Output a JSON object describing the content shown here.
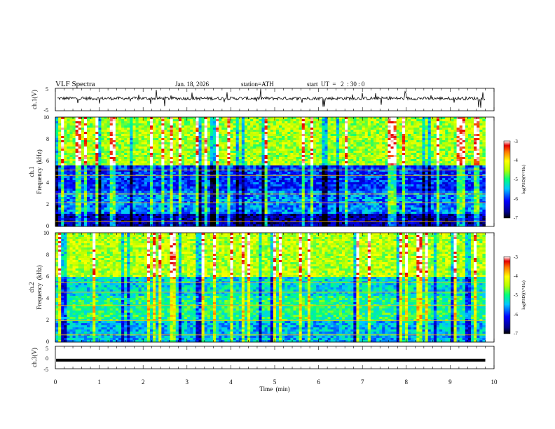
{
  "header": {
    "title": "VLF  Spectra",
    "date": "Jan. 18, 2026",
    "station": "station=ATH",
    "start_ut": "start  UT  =   2  : 30 : 0"
  },
  "chart_data": [
    {
      "id": "ch1-voltage",
      "type": "line",
      "ylabel": "ch.1(V)",
      "ylim": [
        -5,
        5
      ],
      "yticks": [
        "5",
        "-5"
      ],
      "xlim": [
        0,
        9.8
      ],
      "baseline": 0.5,
      "description_values": "waveform centered near 0.5 V with spikes"
    },
    {
      "id": "ch1-spectrogram",
      "type": "heatmap",
      "ylabel": "ch.1",
      "ylabel2": "Frequency  (kHz)",
      "ylim": [
        0,
        10
      ],
      "yticks": [
        "0",
        "2",
        "4",
        "6",
        "8",
        "10"
      ],
      "xlim": [
        0,
        9.8
      ],
      "colorbar": {
        "label": "log(PSD)(V²/Hz)",
        "range": [
          -7,
          -3
        ],
        "ticks": [
          "-3",
          "-4",
          "-5",
          "-6",
          "-7"
        ]
      }
    },
    {
      "id": "ch2-spectrogram",
      "type": "heatmap",
      "ylabel": "ch.2",
      "ylabel2": "Frequency  (kHz)",
      "ylim": [
        0,
        10
      ],
      "yticks": [
        "0",
        "2",
        "4",
        "6",
        "8",
        "10"
      ],
      "xlim": [
        0,
        9.8
      ],
      "colorbar": {
        "label": "log(PSD)(V²/Hz)",
        "range": [
          -7,
          -3
        ],
        "ticks": [
          "-3",
          "-4",
          "-5",
          "-6",
          "-7"
        ]
      }
    },
    {
      "id": "ch3-voltage",
      "type": "line",
      "ylabel": "ch.3(V)",
      "ylim": [
        -5,
        5
      ],
      "yticks": [
        "5",
        "0",
        "-5"
      ],
      "xlim": [
        0,
        9.8
      ],
      "baseline": -1.2
    }
  ],
  "xaxis": {
    "label": "Time  (min)",
    "ticks": [
      "0",
      "1",
      "2",
      "3",
      "4",
      "5",
      "6",
      "7",
      "8",
      "9",
      "10"
    ],
    "range": [
      0,
      10
    ]
  }
}
